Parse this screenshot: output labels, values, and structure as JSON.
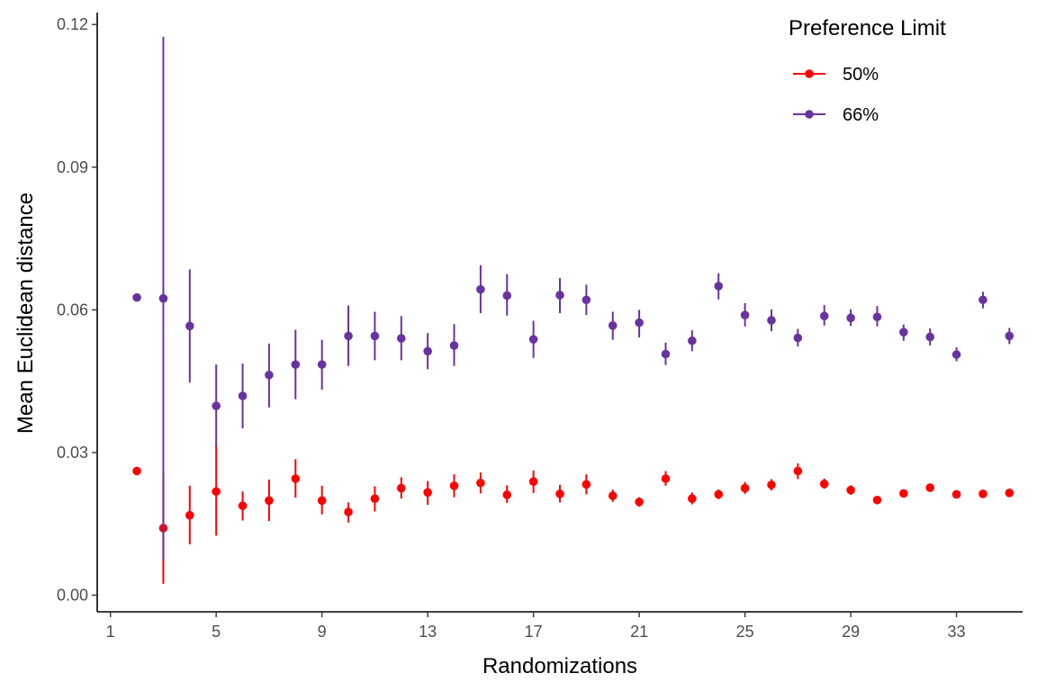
{
  "chart_data": {
    "type": "scatter",
    "title": "",
    "xlabel": "Randomizations",
    "ylabel": "Mean Euclidean distance",
    "xlim": [
      0.5,
      35.5
    ],
    "ylim": [
      -0.0035,
      0.1225
    ],
    "x_ticks": [
      1,
      5,
      9,
      13,
      17,
      21,
      25,
      29,
      33
    ],
    "x_tick_labels": [
      "1",
      "5",
      "9",
      "13",
      "17",
      "21",
      "25",
      "29",
      "33"
    ],
    "y_ticks": [
      0,
      0.03,
      0.06,
      0.09,
      0.12
    ],
    "y_tick_labels": [
      "0.00",
      "0.03",
      "0.06",
      "0.09",
      "0.12"
    ],
    "grid": false,
    "legend": {
      "title": "Preference Limit",
      "position": "top-right"
    },
    "series": [
      {
        "name": "50%",
        "color": "#ff0000",
        "x": [
          2,
          3,
          4,
          5,
          6,
          7,
          8,
          9,
          10,
          11,
          12,
          13,
          14,
          15,
          16,
          17,
          18,
          19,
          20,
          21,
          22,
          23,
          24,
          25,
          26,
          27,
          28,
          29,
          30,
          31,
          32,
          33,
          34,
          35
        ],
        "y": [
          0.0261,
          0.0141,
          0.0168,
          0.0218,
          0.0188,
          0.0199,
          0.0245,
          0.0199,
          0.0175,
          0.0203,
          0.0225,
          0.0216,
          0.023,
          0.0236,
          0.0211,
          0.0239,
          0.0213,
          0.0233,
          0.0209,
          0.0196,
          0.0245,
          0.0203,
          0.0212,
          0.0225,
          0.0232,
          0.0261,
          0.0234,
          0.0221,
          0.02,
          0.0214,
          0.0226,
          0.0212,
          0.0213,
          0.0215
        ],
        "lower": [
          0.0261,
          0.0024,
          0.0107,
          0.0125,
          0.0157,
          0.0156,
          0.0205,
          0.017,
          0.0153,
          0.0176,
          0.0203,
          0.019,
          0.0206,
          0.0214,
          0.0194,
          0.0215,
          0.0195,
          0.0212,
          0.0196,
          0.0186,
          0.023,
          0.0191,
          0.0202,
          0.0213,
          0.022,
          0.0244,
          0.0224,
          0.0211,
          0.0193,
          0.0207,
          0.0219,
          0.0206,
          0.0207,
          0.0208
        ],
        "upper": [
          0.0261,
          0.0257,
          0.023,
          0.0313,
          0.0218,
          0.0243,
          0.0286,
          0.023,
          0.0195,
          0.0229,
          0.0248,
          0.024,
          0.0254,
          0.0258,
          0.0231,
          0.0262,
          0.0232,
          0.0254,
          0.0222,
          0.0206,
          0.0261,
          0.0216,
          0.0222,
          0.0238,
          0.0244,
          0.0277,
          0.0245,
          0.0231,
          0.0206,
          0.0222,
          0.0234,
          0.0219,
          0.022,
          0.0222
        ]
      },
      {
        "name": "66%",
        "color": "#6a329f",
        "x": [
          2,
          3,
          4,
          5,
          6,
          7,
          8,
          9,
          10,
          11,
          12,
          13,
          14,
          15,
          16,
          17,
          18,
          19,
          20,
          21,
          22,
          23,
          24,
          25,
          26,
          27,
          28,
          29,
          30,
          31,
          32,
          33,
          34,
          35
        ],
        "y": [
          0.0626,
          0.0624,
          0.0566,
          0.0398,
          0.0419,
          0.0463,
          0.0485,
          0.0485,
          0.0545,
          0.0545,
          0.054,
          0.0513,
          0.0525,
          0.0643,
          0.063,
          0.0538,
          0.0631,
          0.0621,
          0.0567,
          0.0573,
          0.0507,
          0.0535,
          0.065,
          0.0589,
          0.0578,
          0.0541,
          0.0587,
          0.0583,
          0.0585,
          0.0553,
          0.0543,
          0.0506,
          0.0621,
          0.0545
        ],
        "lower": [
          0.0626,
          0.0074,
          0.0447,
          0.0312,
          0.0351,
          0.0395,
          0.0412,
          0.0432,
          0.0482,
          0.0494,
          0.0494,
          0.0475,
          0.0482,
          0.0593,
          0.0588,
          0.0499,
          0.0593,
          0.0589,
          0.0537,
          0.0542,
          0.0484,
          0.0513,
          0.0622,
          0.0565,
          0.0555,
          0.0523,
          0.0567,
          0.0566,
          0.0565,
          0.0535,
          0.0525,
          0.0492,
          0.0603,
          0.0528
        ],
        "upper": [
          0.0626,
          0.1174,
          0.0685,
          0.0485,
          0.0487,
          0.0529,
          0.0558,
          0.0537,
          0.0609,
          0.0596,
          0.0587,
          0.0551,
          0.057,
          0.0694,
          0.0675,
          0.0577,
          0.0667,
          0.0653,
          0.0596,
          0.06,
          0.0531,
          0.0557,
          0.0677,
          0.0614,
          0.0601,
          0.056,
          0.061,
          0.0601,
          0.0608,
          0.0569,
          0.0561,
          0.0521,
          0.0638,
          0.0562
        ]
      }
    ]
  }
}
